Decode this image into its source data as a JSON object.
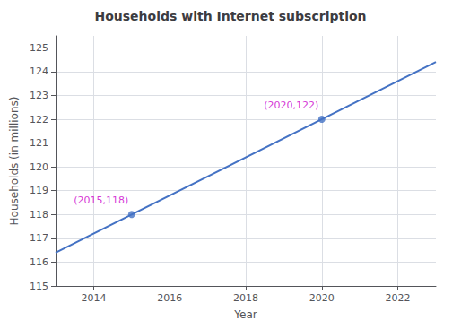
{
  "chart_data": {
    "type": "line",
    "title": "Households with Internet subscription",
    "xlabel": "Year",
    "ylabel": "Households (in millions)",
    "series": [
      {
        "type": "line",
        "color": "#4472C4",
        "x": [
          2013,
          2023
        ],
        "values": [
          116.4,
          124.4
        ]
      },
      {
        "type": "scatter",
        "color": "#4472C4",
        "marker": "circle",
        "x": [
          2015,
          2020
        ],
        "values": [
          118,
          122
        ]
      }
    ],
    "annotations": [
      {
        "text": "(2020,122)",
        "x": 2020,
        "y": 122,
        "color": "#CC00CC"
      },
      {
        "text": "(2015,118)",
        "x": 2015,
        "y": 118,
        "color": "#CC00CC"
      }
    ],
    "xlim": [
      2013,
      2023
    ],
    "xticks": [
      2014,
      2016,
      2018,
      2020,
      2022
    ],
    "ylim": [
      115,
      125.5
    ],
    "yticks": [
      115,
      116,
      117,
      118,
      119,
      120,
      121,
      122,
      123,
      124,
      125
    ],
    "grid": true
  }
}
